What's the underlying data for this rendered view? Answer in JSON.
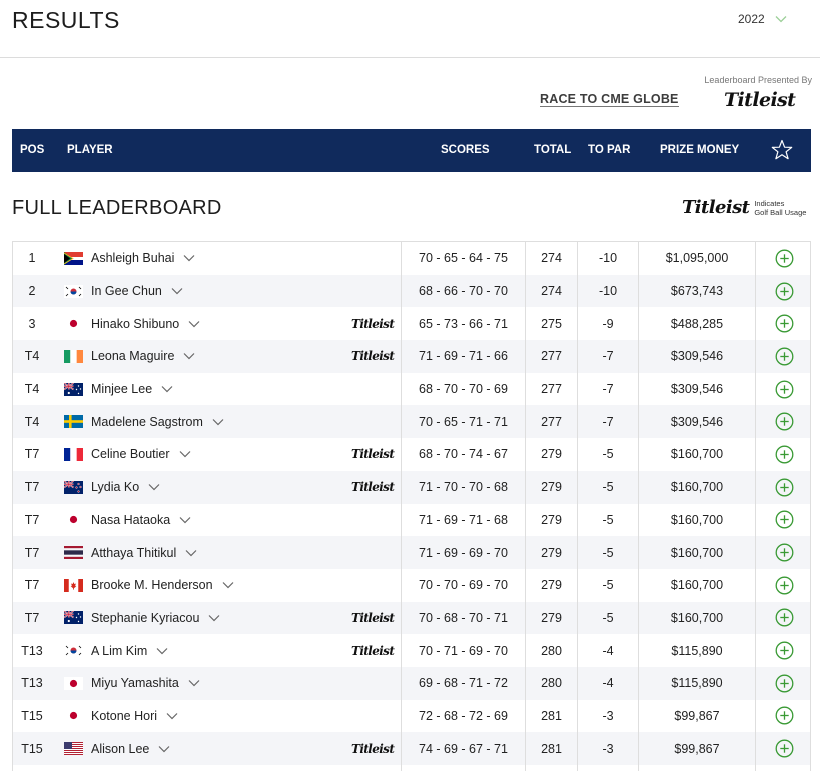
{
  "page": {
    "title": "RESULTS"
  },
  "year_select": {
    "value": "2022"
  },
  "sponsors": {
    "race_logo_text": "RACE TO CME GLOBE",
    "presented_by": "Leaderboard Presented By",
    "titleist": "Titleist"
  },
  "header": {
    "pos": "POS",
    "player": "PLAYER",
    "scores": "SCORES",
    "total": "TOTAL",
    "to_par": "TO PAR",
    "prize_money": "PRIZE MONEY"
  },
  "leaderboard": {
    "title": "FULL LEADERBOARD",
    "legend_brand": "Titleist",
    "legend_text_line1": "Indicates",
    "legend_text_line2": "Golf Ball Usage"
  },
  "colors": {
    "header_bg": "#102a5c",
    "add_icon": "#3a9a35",
    "row_alt": "#f4f5f8"
  },
  "rows": [
    {
      "pos": "1",
      "flag": "south-africa",
      "name": "Ashleigh Buhai",
      "titleist": false,
      "scores": "70 - 65 - 64 - 75",
      "total": "274",
      "to_par": "-10",
      "prize": "$1,095,000"
    },
    {
      "pos": "2",
      "flag": "south-korea",
      "name": "In Gee Chun",
      "titleist": false,
      "scores": "68 - 66 - 70 - 70",
      "total": "274",
      "to_par": "-10",
      "prize": "$673,743"
    },
    {
      "pos": "3",
      "flag": "japan",
      "name": "Hinako Shibuno",
      "titleist": true,
      "scores": "65 - 73 - 66 - 71",
      "total": "275",
      "to_par": "-9",
      "prize": "$488,285"
    },
    {
      "pos": "T4",
      "flag": "ireland",
      "name": "Leona Maguire",
      "titleist": true,
      "scores": "71 - 69 - 71 - 66",
      "total": "277",
      "to_par": "-7",
      "prize": "$309,546"
    },
    {
      "pos": "T4",
      "flag": "australia",
      "name": "Minjee Lee",
      "titleist": false,
      "scores": "68 - 70 - 70 - 69",
      "total": "277",
      "to_par": "-7",
      "prize": "$309,546"
    },
    {
      "pos": "T4",
      "flag": "sweden",
      "name": "Madelene Sagstrom",
      "titleist": false,
      "scores": "70 - 65 - 71 - 71",
      "total": "277",
      "to_par": "-7",
      "prize": "$309,546"
    },
    {
      "pos": "T7",
      "flag": "france",
      "name": "Celine Boutier",
      "titleist": true,
      "scores": "68 - 70 - 74 - 67",
      "total": "279",
      "to_par": "-5",
      "prize": "$160,700"
    },
    {
      "pos": "T7",
      "flag": "new-zealand",
      "name": "Lydia Ko",
      "titleist": true,
      "scores": "71 - 70 - 70 - 68",
      "total": "279",
      "to_par": "-5",
      "prize": "$160,700"
    },
    {
      "pos": "T7",
      "flag": "japan",
      "name": "Nasa Hataoka",
      "titleist": false,
      "scores": "71 - 69 - 71 - 68",
      "total": "279",
      "to_par": "-5",
      "prize": "$160,700"
    },
    {
      "pos": "T7",
      "flag": "thailand",
      "name": "Atthaya Thitikul",
      "titleist": false,
      "scores": "71 - 69 - 69 - 70",
      "total": "279",
      "to_par": "-5",
      "prize": "$160,700"
    },
    {
      "pos": "T7",
      "flag": "canada",
      "name": "Brooke M. Henderson",
      "titleist": false,
      "scores": "70 - 70 - 69 - 70",
      "total": "279",
      "to_par": "-5",
      "prize": "$160,700"
    },
    {
      "pos": "T7",
      "flag": "australia",
      "name": "Stephanie Kyriacou",
      "titleist": true,
      "scores": "70 - 68 - 70 - 71",
      "total": "279",
      "to_par": "-5",
      "prize": "$160,700"
    },
    {
      "pos": "T13",
      "flag": "south-korea",
      "name": "A Lim Kim",
      "titleist": true,
      "scores": "70 - 71 - 69 - 70",
      "total": "280",
      "to_par": "-4",
      "prize": "$115,890"
    },
    {
      "pos": "T13",
      "flag": "japan",
      "name": "Miyu Yamashita",
      "titleist": false,
      "scores": "69 - 68 - 71 - 72",
      "total": "280",
      "to_par": "-4",
      "prize": "$115,890"
    },
    {
      "pos": "T15",
      "flag": "japan",
      "name": "Kotone Hori",
      "titleist": false,
      "scores": "72 - 68 - 72 - 69",
      "total": "281",
      "to_par": "-3",
      "prize": "$99,867"
    },
    {
      "pos": "T15",
      "flag": "united-states",
      "name": "Alison Lee",
      "titleist": true,
      "scores": "74 - 69 - 67 - 71",
      "total": "281",
      "to_par": "-3",
      "prize": "$99,867"
    },
    {
      "pos": "",
      "flag": "",
      "name": "",
      "titleist": false,
      "scores": "",
      "total": "",
      "to_par": "",
      "prize": ""
    }
  ]
}
